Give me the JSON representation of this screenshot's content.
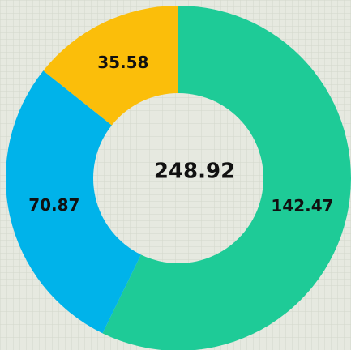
{
  "chart_data": {
    "type": "donut",
    "values": [
      142.47,
      70.87,
      35.58
    ],
    "colors": [
      "#1ecb97",
      "#00b3ea",
      "#fbbe0a"
    ],
    "total": "248.92"
  }
}
